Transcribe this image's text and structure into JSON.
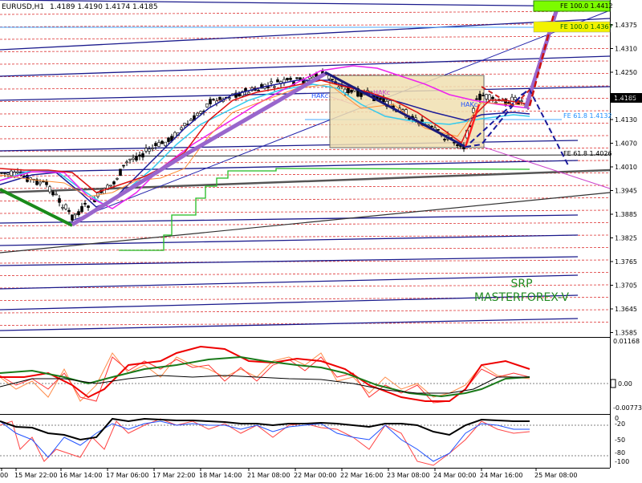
{
  "header": {
    "symbol": "EURUSD,H1",
    "ohlc": "1.4189 1.4190 1.4174 1.4185"
  },
  "price_axis": {
    "ticks": [
      "1.4375",
      "1.4310",
      "1.4250",
      "1.4190",
      "1.4130",
      "1.4070",
      "1.4010",
      "1.3945",
      "1.3885",
      "1.3825",
      "1.3765",
      "1.3705",
      "1.3645",
      "1.3585"
    ],
    "current_price": "1.4185"
  },
  "macd_axis": {
    "top": "0.01168",
    "mid": "0.00",
    "bottom": "-0.00773"
  },
  "stoch_axis": {
    "ticks": [
      "0",
      "-20",
      "-50",
      "-80",
      "-100"
    ]
  },
  "time_axis": {
    "labels": [
      "00",
      "15 Mar 22:00",
      "16 Mar 14:00",
      "17 Mar 06:00",
      "17 Mar 22:00",
      "18 Mar 14:00",
      "21 Mar 08:00",
      "22 Mar 00:00",
      "22 Mar 16:00",
      "23 Mar 08:00",
      "24 Mar 00:00",
      "24 Mar 16:00",
      "25 Mar 08:00"
    ]
  },
  "annotations": {
    "fe_top": "FE 100.0 1.4412",
    "fe_second": "FE 100.0 1.4367",
    "fe_618_up": "FE 61.8 1.4132",
    "fe_618_down": "FE 61.8 1.4026",
    "hak_labels": [
      "HAKc",
      "HAKc",
      "HAKc"
    ]
  },
  "watermark": {
    "line1": "SRP",
    "line2": "MASTERFOREX-V"
  },
  "colors": {
    "price_grid": "#ff0000",
    "trend_lines": "#00008b",
    "highlight_purple": "#9966cc",
    "box_fill": "#f0e0b0",
    "fe_green": "#7cfc00",
    "fe_yellow": "#f0f000",
    "watermark": "#228b22"
  }
}
